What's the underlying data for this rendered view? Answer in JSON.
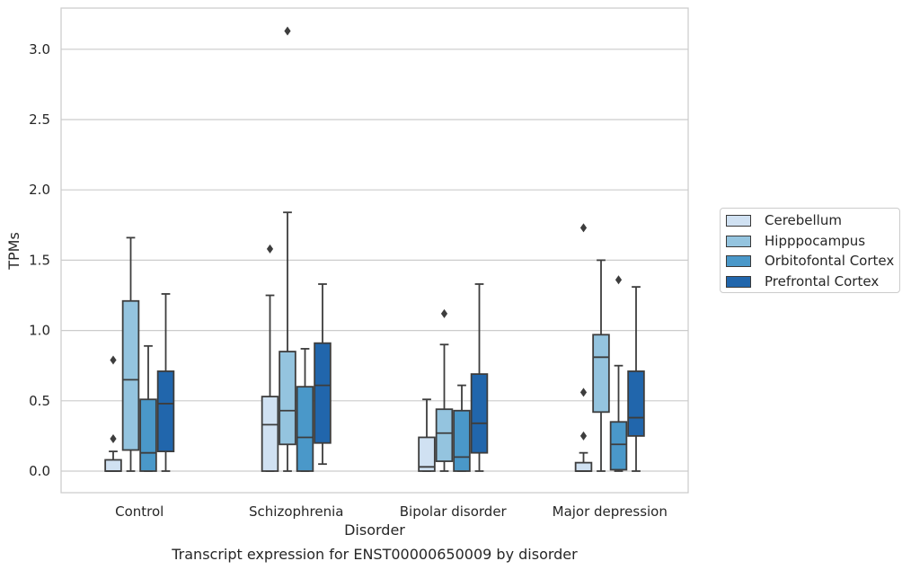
{
  "chart_data": {
    "type": "box",
    "title": "Transcript expression for ENST00000650009 by disorder",
    "xlabel": "Disorder",
    "ylabel": "TPMs",
    "ylim": [
      -0.15,
      3.3
    ],
    "yticks": [
      "0.0",
      "0.5",
      "1.0",
      "1.5",
      "2.0",
      "2.5",
      "3.0"
    ],
    "grid": "horizontal",
    "legend_position": "right",
    "categories": [
      "Control",
      "Schizophrenia",
      "Bipolar disorder",
      "Major depression"
    ],
    "series": [
      {
        "name": "Cerebellum",
        "color": "#d0e1f2",
        "boxes": [
          {
            "min": 0.0,
            "q1": 0.0,
            "median": 0.0,
            "q3": 0.08,
            "max": 0.14,
            "outliers": [
              0.23,
              0.79
            ]
          },
          {
            "min": 0.0,
            "q1": 0.0,
            "median": 0.33,
            "q3": 0.53,
            "max": 1.25,
            "outliers": [
              1.58
            ]
          },
          {
            "min": 0.0,
            "q1": 0.0,
            "median": 0.03,
            "q3": 0.24,
            "max": 0.51,
            "outliers": []
          },
          {
            "min": 0.0,
            "q1": 0.0,
            "median": 0.0,
            "q3": 0.06,
            "max": 0.13,
            "outliers": [
              0.25,
              0.56,
              1.73
            ]
          }
        ]
      },
      {
        "name": "Hipppocampus",
        "color": "#94c4df",
        "boxes": [
          {
            "min": 0.0,
            "q1": 0.15,
            "median": 0.65,
            "q3": 1.21,
            "max": 1.66,
            "outliers": []
          },
          {
            "min": 0.0,
            "q1": 0.19,
            "median": 0.43,
            "q3": 0.85,
            "max": 1.84,
            "outliers": [
              3.13
            ]
          },
          {
            "min": 0.0,
            "q1": 0.07,
            "median": 0.27,
            "q3": 0.44,
            "max": 0.9,
            "outliers": [
              1.12
            ]
          },
          {
            "min": 0.0,
            "q1": 0.42,
            "median": 0.81,
            "q3": 0.97,
            "max": 1.5,
            "outliers": []
          }
        ]
      },
      {
        "name": "Orbitofontal Cortex",
        "color": "#4a98c9",
        "boxes": [
          {
            "min": 0.0,
            "q1": 0.0,
            "median": 0.13,
            "q3": 0.51,
            "max": 0.89,
            "outliers": []
          },
          {
            "min": 0.0,
            "q1": 0.0,
            "median": 0.24,
            "q3": 0.6,
            "max": 0.87,
            "outliers": []
          },
          {
            "min": 0.0,
            "q1": 0.0,
            "median": 0.1,
            "q3": 0.43,
            "max": 0.61,
            "outliers": []
          },
          {
            "min": 0.0,
            "q1": 0.01,
            "median": 0.19,
            "q3": 0.35,
            "max": 0.75,
            "outliers": [
              1.36
            ]
          }
        ]
      },
      {
        "name": "Prefrontal Cortex",
        "color": "#2166ac",
        "boxes": [
          {
            "min": 0.0,
            "q1": 0.14,
            "median": 0.48,
            "q3": 0.71,
            "max": 1.26,
            "outliers": []
          },
          {
            "min": 0.05,
            "q1": 0.2,
            "median": 0.61,
            "q3": 0.91,
            "max": 1.33,
            "outliers": []
          },
          {
            "min": 0.0,
            "q1": 0.13,
            "median": 0.34,
            "q3": 0.69,
            "max": 1.33,
            "outliers": []
          },
          {
            "min": 0.0,
            "q1": 0.25,
            "median": 0.38,
            "q3": 0.71,
            "max": 1.31,
            "outliers": []
          }
        ]
      }
    ]
  }
}
